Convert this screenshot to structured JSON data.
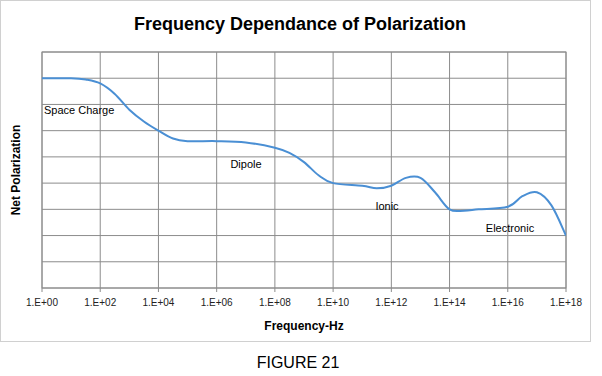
{
  "chart_data": {
    "type": "line",
    "title": "Frequency Dependance of Polarization",
    "x_label": "Frequency-Hz",
    "y_label": "Net Polarization",
    "caption": "FIGURE 21",
    "annotations": [
      "Space Charge",
      "Dipole",
      "Ionic",
      "Electronic"
    ],
    "log": "x",
    "grid": true,
    "tick_labels": "x",
    "xlim": [
      1,
      1e+18
    ],
    "xticks": [
      {
        "value": 1,
        "label": "1.E+00"
      },
      {
        "value": 100,
        "label": "1.E+02"
      },
      {
        "value": 10000,
        "label": "1.E+04"
      },
      {
        "value": 1000000,
        "label": "1.E+06"
      },
      {
        "value": 100000000,
        "label": "1.E+08"
      },
      {
        "value": 10000000000,
        "label": "1.E+10"
      },
      {
        "value": 1000000000000,
        "label": "1.E+12"
      },
      {
        "value": 100000000000000,
        "label": "1.E+14"
      },
      {
        "value": 10000000000000000,
        "label": "1.E+16"
      },
      {
        "value": 1000000000000000000,
        "label": "1.E+18"
      }
    ],
    "ylim": [
      0,
      9
    ],
    "yticks": [
      0,
      1,
      2,
      3,
      4,
      5,
      6,
      7,
      8,
      9
    ],
    "x": [
      1,
      10,
      31.6,
      100,
      316,
      1000,
      3160,
      10000,
      31600,
      100000,
      1000000.0,
      10000000.0,
      100000000.0,
      316000000.0,
      1000000000.0,
      3160000000.0,
      10000000000.0,
      100000000000.0,
      316000000000.0,
      1000000000000.0,
      3160000000000.0,
      10000000000000.0,
      31600000000000.0,
      100000000000000.0,
      316000000000000.0,
      1000000000000000.0,
      1e+16,
      3.16e+16,
      1e+17,
      3.16e+17,
      1e+18
    ],
    "series": [
      {
        "name": "Net Polarization",
        "color": "#4a8fd4",
        "values": [
          8.0,
          8.0,
          7.95,
          7.8,
          7.4,
          6.8,
          6.35,
          6.0,
          5.7,
          5.6,
          5.6,
          5.55,
          5.35,
          5.15,
          4.8,
          4.3,
          4.0,
          3.9,
          3.8,
          3.9,
          4.2,
          4.2,
          3.65,
          3.0,
          2.95,
          3.0,
          3.1,
          3.5,
          3.65,
          3.15,
          2.0
        ]
      }
    ]
  }
}
